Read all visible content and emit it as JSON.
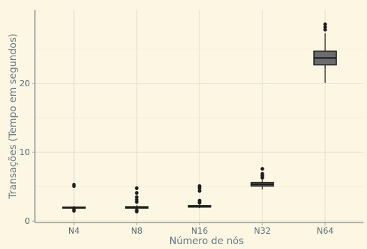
{
  "chart_data": {
    "type": "box",
    "title": "",
    "xlabel": "Número de nós",
    "ylabel": "Transações (Tempo em segundos)",
    "ylim": [
      0,
      30
    ],
    "y_ticks": [
      0,
      10,
      20
    ],
    "grid": true,
    "colors": {
      "background": "#fdf6e3",
      "panel": "#fdf6e3",
      "grid": "#e8e1cf",
      "axis": "#93a1a1",
      "box_fill": "#6c6c6c",
      "box_line": "#1e1e1e"
    },
    "categories": [
      "N4",
      "N8",
      "N16",
      "N32",
      "N64"
    ],
    "boxes": [
      {
        "category": "N4",
        "lower_whisker": 1.8,
        "q1": 1.95,
        "median": 2.0,
        "q3": 2.05,
        "upper_whisker": 2.2,
        "outliers": [
          1.5,
          1.6,
          1.7,
          5.1,
          5.3
        ]
      },
      {
        "category": "N8",
        "lower_whisker": 1.8,
        "q1": 1.9,
        "median": 2.0,
        "q3": 2.1,
        "upper_whisker": 2.3,
        "outliers": [
          1.4,
          1.6,
          2.8,
          3.1,
          3.5,
          4.1,
          4.8
        ]
      },
      {
        "category": "N16",
        "lower_whisker": 1.9,
        "q1": 2.05,
        "median": 2.15,
        "q3": 2.25,
        "upper_whisker": 2.45,
        "outliers": [
          2.7,
          3.0,
          4.4,
          4.8,
          5.1
        ]
      },
      {
        "category": "N32",
        "lower_whisker": 4.6,
        "q1": 5.1,
        "median": 5.35,
        "q3": 5.6,
        "upper_whisker": 6.0,
        "outliers": [
          6.3,
          6.6,
          6.9,
          7.6
        ]
      },
      {
        "category": "N64",
        "lower_whisker": 20.1,
        "q1": 22.7,
        "median": 23.7,
        "q3": 24.7,
        "upper_whisker": 27.3,
        "outliers": [
          27.8,
          28.2,
          28.6
        ]
      }
    ]
  }
}
